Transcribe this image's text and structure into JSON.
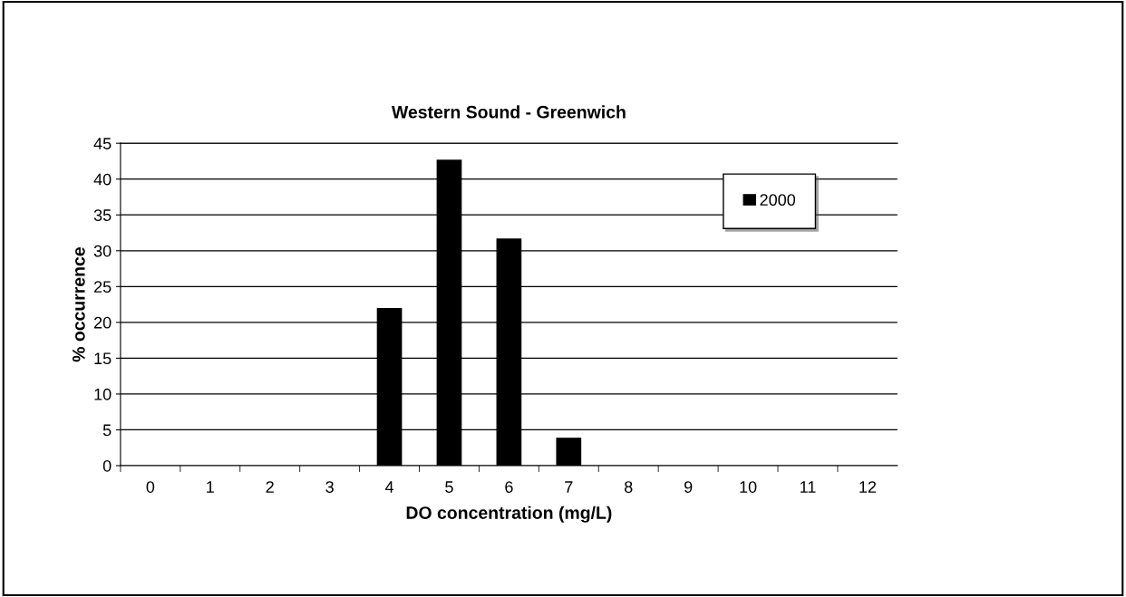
{
  "chart_data": {
    "type": "bar",
    "title": "Western Sound - Greenwich",
    "xlabel": "DO concentration (mg/L)",
    "ylabel": "% occurrence",
    "categories": [
      "0",
      "1",
      "2",
      "3",
      "4",
      "5",
      "6",
      "7",
      "8",
      "9",
      "10",
      "11",
      "12"
    ],
    "series": [
      {
        "name": "2000",
        "color": "#000000",
        "values": [
          0,
          0,
          0,
          0,
          22,
          42.7,
          31.7,
          3.9,
          0,
          0,
          0,
          0,
          0
        ]
      }
    ],
    "ylim": [
      0,
      45
    ],
    "yticks": [
      0,
      5,
      10,
      15,
      20,
      25,
      30,
      35,
      40,
      45
    ],
    "grid": "y",
    "legend": "top right"
  }
}
